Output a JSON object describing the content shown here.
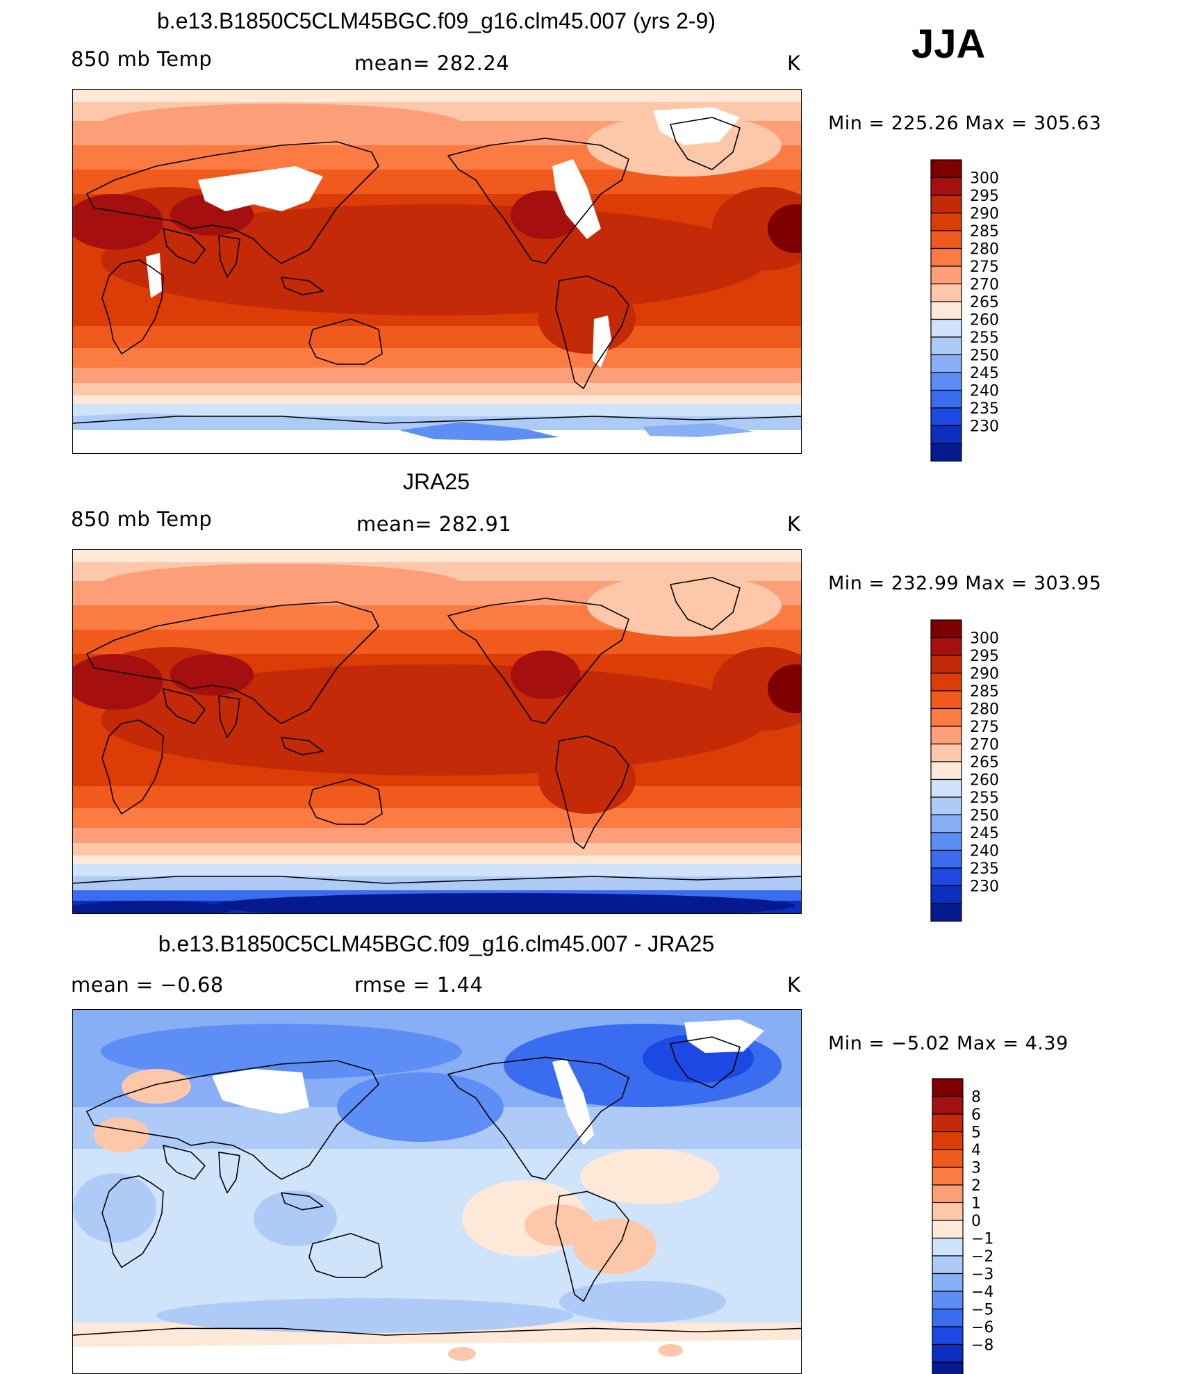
{
  "season": "JJA",
  "panels": [
    {
      "title": "b.e13.B1850C5CLM45BGC.f09_g16.clm45.007 (yrs 2-9)",
      "left_label": "850 mb Temp",
      "stat1": "mean= 282.24",
      "stat2": "",
      "units": "K",
      "minmax": "Min = 225.26 Max = 305.63",
      "colorbar": {
        "labels": [
          "300",
          "295",
          "290",
          "285",
          "280",
          "275",
          "270",
          "265",
          "260",
          "255",
          "250",
          "245",
          "240",
          "235",
          "230"
        ],
        "colors": [
          "#7f0000",
          "#a50f0f",
          "#c42a08",
          "#dc3c06",
          "#f05a1c",
          "#fb7b42",
          "#fc9f78",
          "#fdc7a9",
          "#fee9d8",
          "#cfe3fa",
          "#aecbf7",
          "#88aef5",
          "#5d8ef5",
          "#3a6cf0",
          "#1c48e3",
          "#0b2fbf",
          "#061a8f"
        ]
      },
      "field": "model"
    },
    {
      "title": "JRA25",
      "left_label": "850 mb Temp",
      "stat1": "mean= 282.91",
      "stat2": "",
      "units": "K",
      "minmax": "Min = 232.99 Max = 303.95",
      "colorbar": {
        "labels": [
          "300",
          "295",
          "290",
          "285",
          "280",
          "275",
          "270",
          "265",
          "260",
          "255",
          "250",
          "245",
          "240",
          "235",
          "230"
        ],
        "colors": [
          "#7f0000",
          "#a50f0f",
          "#c42a08",
          "#dc3c06",
          "#f05a1c",
          "#fb7b42",
          "#fc9f78",
          "#fdc7a9",
          "#fee9d8",
          "#cfe3fa",
          "#aecbf7",
          "#88aef5",
          "#5d8ef5",
          "#3a6cf0",
          "#1c48e3",
          "#0b2fbf",
          "#061a8f"
        ]
      },
      "field": "obs"
    },
    {
      "title": "b.e13.B1850C5CLM45BGC.f09_g16.clm45.007 - JRA25",
      "left_label": "mean = −0.68",
      "stat1": "rmse = 1.44",
      "stat2": "",
      "units": "K",
      "minmax": "Min = −5.02 Max = 4.39",
      "colorbar": {
        "labels": [
          "8",
          "6",
          "5",
          "4",
          "3",
          "2",
          "1",
          "0",
          "−1",
          "−2",
          "−3",
          "−4",
          "−5",
          "−6",
          "−8"
        ],
        "colors": [
          "#7f0000",
          "#a50f0f",
          "#c42a08",
          "#dc3c06",
          "#f05a1c",
          "#fb7b42",
          "#fc9f78",
          "#fdc7a9",
          "#fee9d8",
          "#cfe3fa",
          "#aecbf7",
          "#88aef5",
          "#5d8ef5",
          "#3a6cf0",
          "#1c48e3",
          "#0b2fbf",
          "#061a8f"
        ]
      },
      "field": "diff"
    }
  ]
}
